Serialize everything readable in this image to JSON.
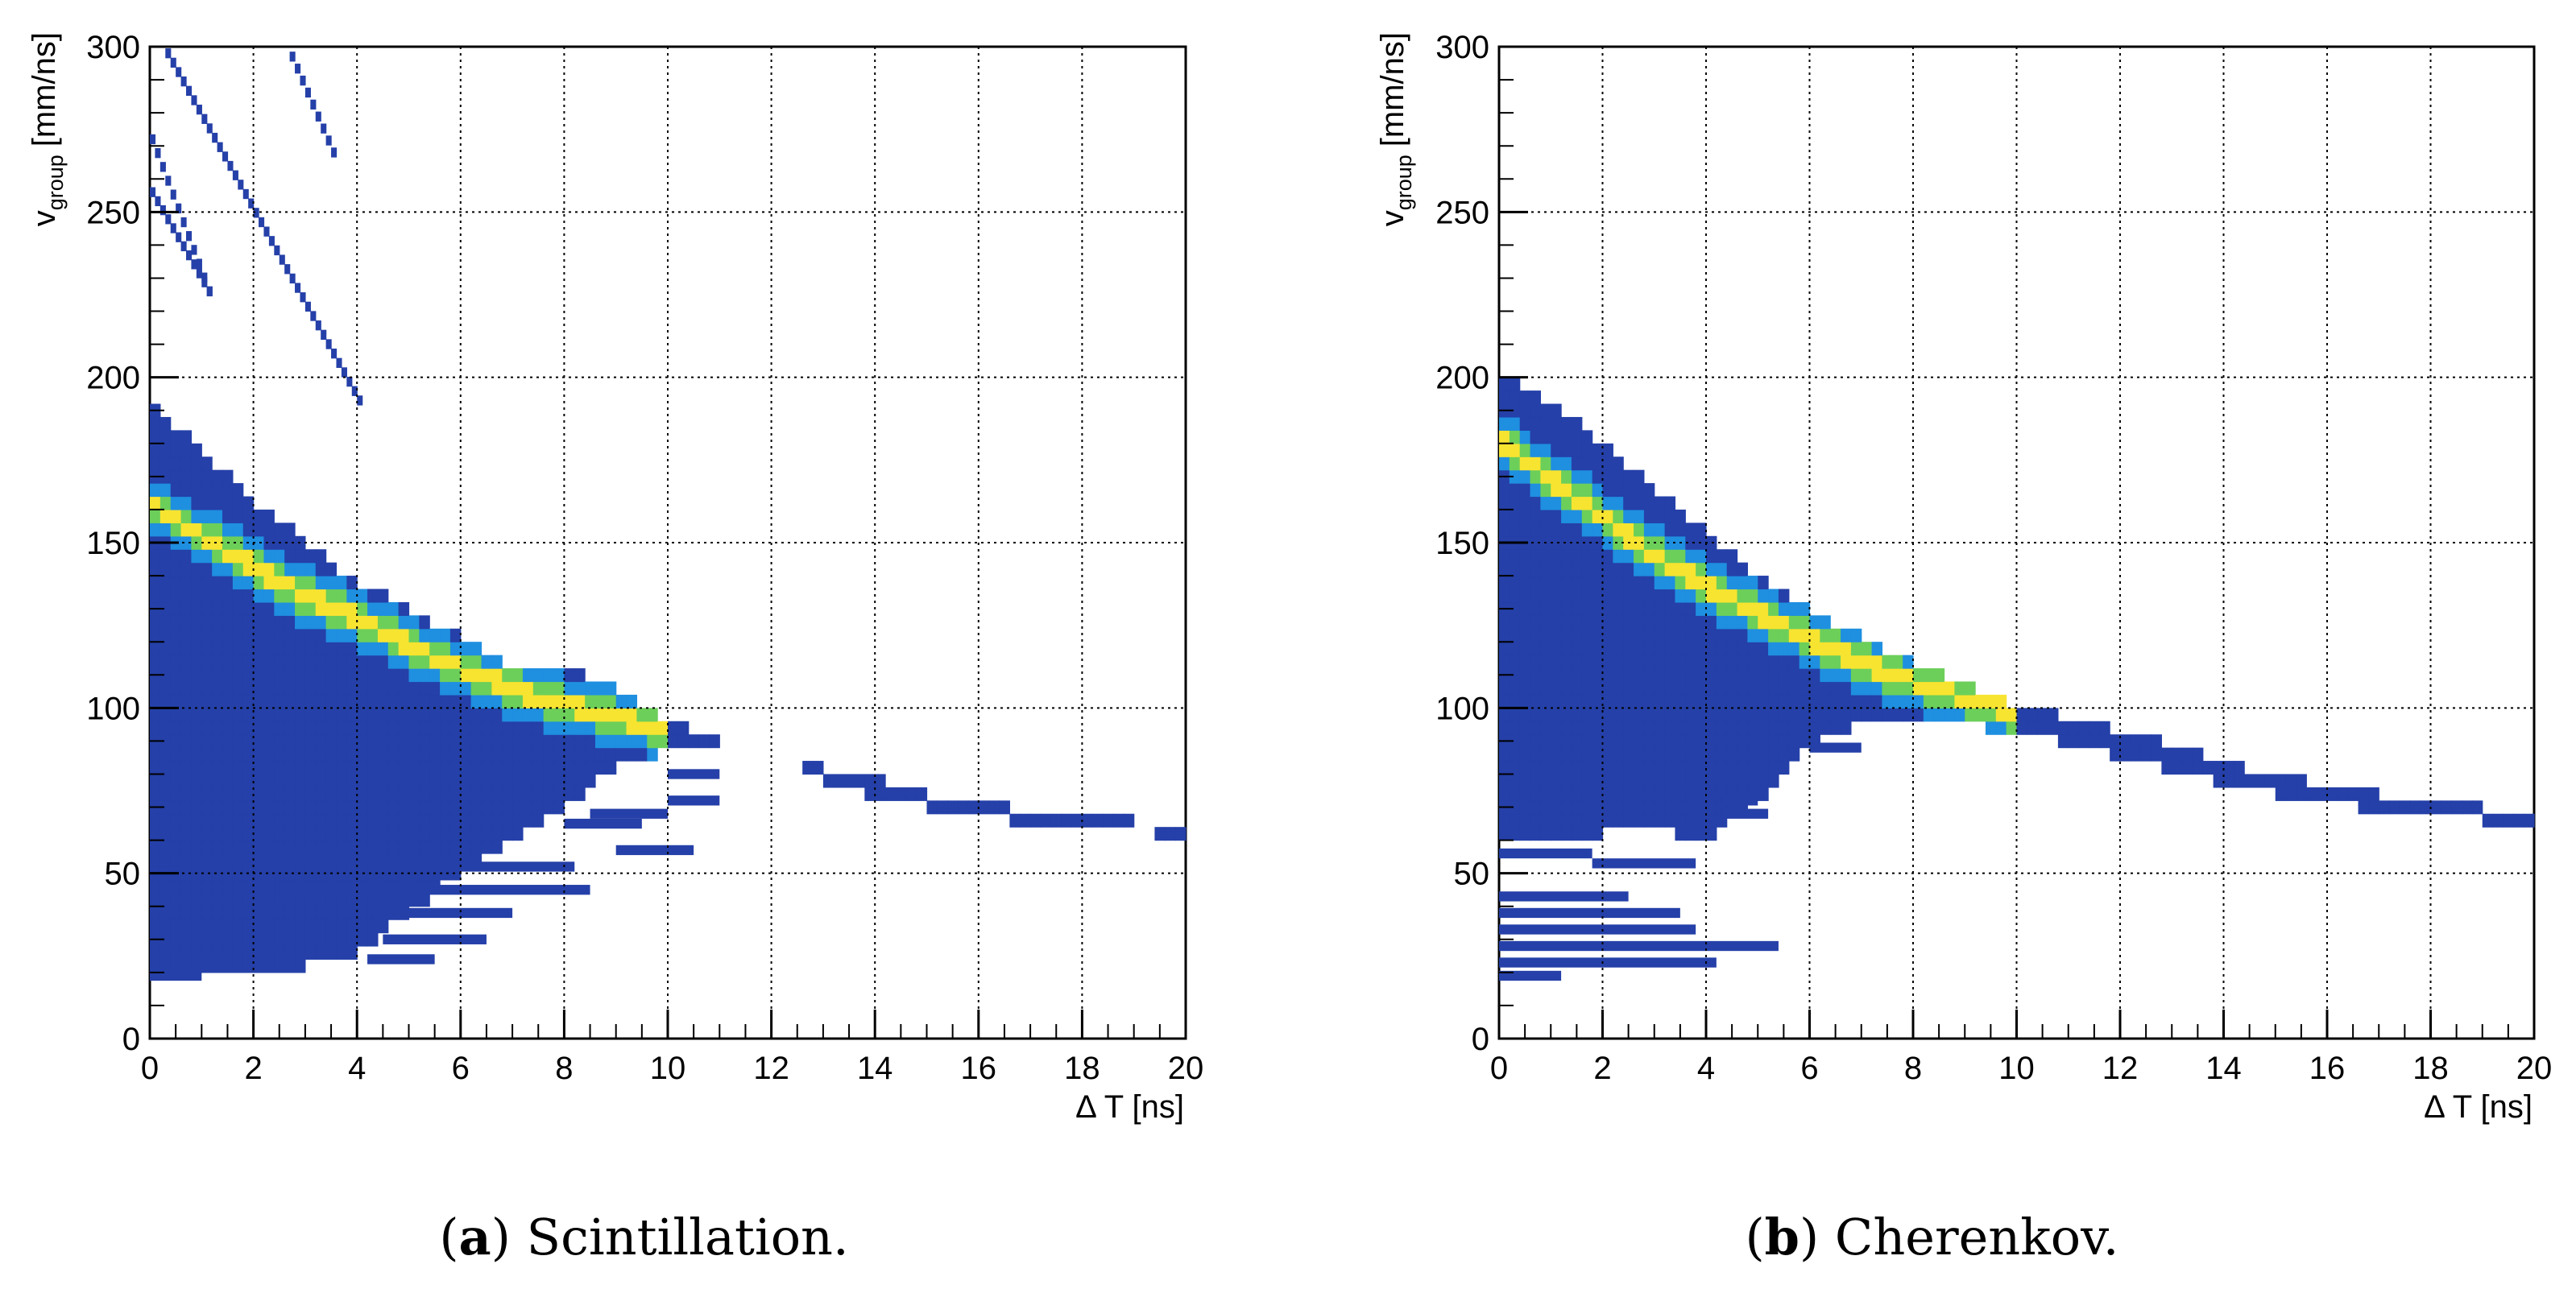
{
  "chart_data": [
    {
      "type": "heatmap",
      "panel": "a",
      "caption_letter": "a",
      "caption_text": "Scintillation.",
      "xlabel": "Δ T [ns]",
      "ylabel_main": "v",
      "ylabel_sub": "group",
      "ylabel_unit": "[mm/ns]",
      "xlim": [
        0,
        20
      ],
      "ylim": [
        0,
        300
      ],
      "x_ticks": [
        "0",
        "2",
        "4",
        "6",
        "8",
        "10",
        "12",
        "14",
        "16",
        "18",
        "20"
      ],
      "y_ticks": [
        "0",
        "50",
        "100",
        "150",
        "200",
        "250",
        "300"
      ],
      "grid": true,
      "colors": {
        "low": "#2540a8",
        "mid": "#1f8fe0",
        "high": "#f7e430",
        "peak": "#ffd020"
      },
      "ridge": [
        [
          0,
          162
        ],
        [
          1,
          152
        ],
        [
          2,
          143
        ],
        [
          3,
          134
        ],
        [
          4,
          127
        ],
        [
          5,
          119
        ],
        [
          6,
          112
        ],
        [
          7,
          106
        ],
        [
          8,
          101
        ],
        [
          9,
          97
        ],
        [
          10,
          93
        ]
      ],
      "body_upper": [
        [
          0,
          192
        ],
        [
          1,
          178
        ],
        [
          2,
          163
        ],
        [
          3,
          151
        ],
        [
          4,
          138
        ],
        [
          5,
          130
        ],
        [
          6,
          122
        ],
        [
          7,
          112
        ],
        [
          8,
          112
        ],
        [
          9,
          106
        ],
        [
          10,
          97
        ],
        [
          11,
          90
        ],
        [
          12,
          85
        ],
        [
          13,
          82
        ],
        [
          14,
          79
        ],
        [
          15,
          74
        ],
        [
          16,
          72
        ],
        [
          17,
          69
        ],
        [
          18,
          67
        ],
        [
          19,
          66
        ],
        [
          20,
          64
        ]
      ],
      "body_lower": [
        [
          0,
          22
        ],
        [
          1,
          22
        ],
        [
          2,
          22
        ],
        [
          3,
          22
        ],
        [
          4,
          25
        ],
        [
          5,
          38
        ],
        [
          6,
          50
        ],
        [
          7,
          60
        ],
        [
          8,
          70
        ],
        [
          9,
          82
        ],
        [
          10,
          87
        ],
        [
          11,
          87
        ],
        [
          12,
          86
        ],
        [
          13,
          78
        ],
        [
          14,
          73
        ],
        [
          15,
          70
        ],
        [
          16,
          68
        ],
        [
          17,
          65
        ],
        [
          18,
          64
        ],
        [
          19,
          63
        ],
        [
          20,
          60
        ]
      ],
      "streaks": [
        {
          "x0": 0.0,
          "x1": 1.0,
          "y": 19
        },
        {
          "x0": 1.5,
          "x1": 4.5,
          "y": 55
        },
        {
          "x0": 4.5,
          "x1": 8.2,
          "y": 52
        },
        {
          "x0": 2.5,
          "x1": 8.5,
          "y": 45
        },
        {
          "x0": 4.3,
          "x1": 7.0,
          "y": 38
        },
        {
          "x0": 4.5,
          "x1": 6.5,
          "y": 30
        },
        {
          "x0": 4.2,
          "x1": 5.5,
          "y": 24
        },
        {
          "x0": 8.0,
          "x1": 9.5,
          "y": 65
        },
        {
          "x0": 8.5,
          "x1": 10.0,
          "y": 68
        },
        {
          "x0": 9.0,
          "x1": 10.5,
          "y": 57
        },
        {
          "x0": 10.0,
          "x1": 11.0,
          "y": 80
        },
        {
          "x0": 10.0,
          "x1": 11.0,
          "y": 72
        }
      ],
      "bands": [
        {
          "x0": 0.0,
          "y0": 272,
          "x1": 1.1,
          "y1": 226
        },
        {
          "x0": 0.0,
          "y0": 256,
          "x1": 1.1,
          "y1": 226
        },
        {
          "x0": 0.3,
          "y0": 298,
          "x1": 4.0,
          "y1": 193
        },
        {
          "x0": 2.7,
          "y0": 297,
          "x1": 3.5,
          "y1": 268
        }
      ]
    },
    {
      "type": "heatmap",
      "panel": "b",
      "caption_letter": "b",
      "caption_text": "Cherenkov.",
      "xlabel": "Δ T [ns]",
      "ylabel_main": "v",
      "ylabel_sub": "group",
      "ylabel_unit": "[mm/ns]",
      "xlim": [
        0,
        20
      ],
      "ylim": [
        0,
        300
      ],
      "x_ticks": [
        "0",
        "2",
        "4",
        "6",
        "8",
        "10",
        "12",
        "14",
        "16",
        "18",
        "20"
      ],
      "y_ticks": [
        "0",
        "50",
        "100",
        "150",
        "200",
        "250",
        "300"
      ],
      "grid": true,
      "colors": {
        "low": "#2540a8",
        "mid": "#1f8fe0",
        "high": "#f7e430",
        "peak": "#ffd020"
      },
      "ridge": [
        [
          0,
          181
        ],
        [
          1,
          169
        ],
        [
          2,
          158
        ],
        [
          3,
          146
        ],
        [
          4,
          137
        ],
        [
          5,
          129
        ],
        [
          6,
          121
        ],
        [
          7,
          114
        ],
        [
          8,
          108
        ],
        [
          9,
          103
        ],
        [
          10,
          98
        ]
      ],
      "body_upper": [
        [
          0,
          203
        ],
        [
          1,
          192
        ],
        [
          2,
          180
        ],
        [
          3,
          167
        ],
        [
          4,
          153
        ],
        [
          5,
          140
        ],
        [
          6,
          130
        ],
        [
          7,
          122
        ],
        [
          8,
          114
        ],
        [
          9,
          107
        ],
        [
          10,
          101
        ],
        [
          11,
          97
        ],
        [
          12,
          93
        ],
        [
          13,
          89
        ],
        [
          14,
          84
        ],
        [
          15,
          79
        ],
        [
          16,
          77
        ],
        [
          17,
          74
        ],
        [
          18,
          72
        ],
        [
          19,
          70
        ],
        [
          20,
          68
        ]
      ],
      "body_lower": [
        [
          0,
          60
        ],
        [
          1,
          62
        ],
        [
          2,
          62
        ],
        [
          3,
          64
        ],
        [
          4,
          60
        ],
        [
          5,
          72
        ],
        [
          6,
          88
        ],
        [
          7,
          95
        ],
        [
          8,
          95
        ],
        [
          9,
          95
        ],
        [
          10,
          93
        ],
        [
          11,
          89
        ],
        [
          12,
          85
        ],
        [
          13,
          81
        ],
        [
          14,
          77
        ],
        [
          15,
          74
        ],
        [
          16,
          71
        ],
        [
          17,
          69
        ],
        [
          18,
          67
        ],
        [
          19,
          66
        ],
        [
          20,
          64
        ]
      ],
      "streaks": [
        {
          "x0": 0.0,
          "x1": 1.8,
          "y": 56
        },
        {
          "x0": 1.8,
          "x1": 3.8,
          "y": 53
        },
        {
          "x0": 0.0,
          "x1": 2.5,
          "y": 43
        },
        {
          "x0": 0.0,
          "x1": 3.5,
          "y": 38
        },
        {
          "x0": 0.0,
          "x1": 3.8,
          "y": 33
        },
        {
          "x0": 0.0,
          "x1": 5.4,
          "y": 28
        },
        {
          "x0": 0.0,
          "x1": 4.2,
          "y": 23
        },
        {
          "x0": 0.0,
          "x1": 1.2,
          "y": 19
        },
        {
          "x0": 6.0,
          "x1": 7.0,
          "y": 88
        },
        {
          "x0": 4.3,
          "x1": 5.2,
          "y": 68
        },
        {
          "x0": 4.3,
          "x1": 5.0,
          "y": 72
        }
      ],
      "bands": []
    }
  ]
}
